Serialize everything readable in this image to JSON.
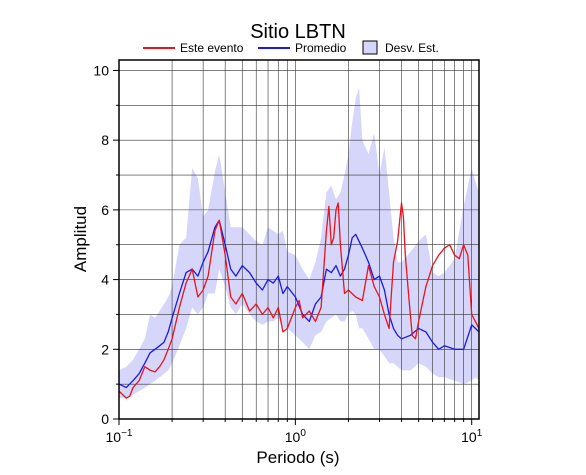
{
  "chart_data": {
    "type": "line",
    "title": "Sitio LBTN",
    "xlabel": "Periodo (s)",
    "ylabel": "Amplitud",
    "xscale": "log",
    "xlim": [
      0.1,
      11
    ],
    "ylim": [
      0,
      10.3
    ],
    "grid": true,
    "legend_position": "top",
    "x_tick_labels": [
      {
        "value": 0.1,
        "base": "10",
        "exp": "−1"
      },
      {
        "value": 1,
        "base": "10",
        "exp": "0"
      },
      {
        "value": 10,
        "base": "10",
        "exp": "1"
      }
    ],
    "y_ticks": [
      0,
      2,
      4,
      6,
      8,
      10
    ],
    "series": [
      {
        "name": "Este evento",
        "color": "#e8141e",
        "x": [
          0.1,
          0.11,
          0.115,
          0.12,
          0.13,
          0.14,
          0.15,
          0.16,
          0.17,
          0.18,
          0.19,
          0.2,
          0.22,
          0.24,
          0.26,
          0.28,
          0.3,
          0.32,
          0.35,
          0.37,
          0.4,
          0.43,
          0.46,
          0.5,
          0.55,
          0.6,
          0.65,
          0.7,
          0.75,
          0.8,
          0.85,
          0.9,
          1.0,
          1.05,
          1.1,
          1.2,
          1.3,
          1.4,
          1.5,
          1.55,
          1.6,
          1.65,
          1.7,
          1.75,
          1.8,
          1.9,
          2.0,
          2.2,
          2.4,
          2.6,
          2.8,
          3.0,
          3.2,
          3.4,
          3.6,
          3.8,
          4.0,
          4.1,
          4.2,
          4.4,
          4.6,
          4.8,
          5.0,
          5.5,
          6.0,
          6.5,
          7.0,
          7.5,
          8.0,
          8.5,
          9.0,
          9.5,
          10.0,
          11.0
        ],
        "values": [
          0.8,
          0.6,
          0.65,
          0.9,
          1.1,
          1.5,
          1.4,
          1.35,
          1.5,
          1.7,
          2.0,
          2.3,
          3.2,
          3.9,
          4.3,
          3.5,
          3.7,
          4.1,
          5.4,
          5.7,
          4.7,
          3.5,
          3.3,
          3.6,
          3.1,
          3.3,
          3.0,
          3.2,
          2.9,
          3.2,
          2.5,
          2.6,
          3.2,
          3.4,
          2.9,
          3.1,
          2.8,
          3.2,
          5.4,
          6.1,
          5.0,
          5.2,
          6.0,
          6.2,
          5.0,
          3.6,
          3.7,
          3.5,
          3.4,
          4.4,
          3.8,
          3.5,
          3.0,
          2.6,
          4.5,
          5.1,
          6.2,
          5.8,
          4.7,
          3.5,
          2.4,
          2.3,
          2.8,
          3.8,
          4.4,
          4.7,
          4.9,
          5.0,
          4.7,
          4.6,
          5.0,
          4.7,
          3.0,
          2.6
        ]
      },
      {
        "name": "Promedio",
        "color": "#1a1ae6",
        "x": [
          0.1,
          0.11,
          0.12,
          0.13,
          0.14,
          0.15,
          0.16,
          0.17,
          0.18,
          0.19,
          0.2,
          0.22,
          0.24,
          0.26,
          0.28,
          0.3,
          0.32,
          0.35,
          0.37,
          0.4,
          0.43,
          0.46,
          0.5,
          0.55,
          0.6,
          0.65,
          0.7,
          0.75,
          0.8,
          0.85,
          0.9,
          1.0,
          1.1,
          1.2,
          1.3,
          1.4,
          1.5,
          1.6,
          1.7,
          1.8,
          1.9,
          2.0,
          2.1,
          2.2,
          2.4,
          2.6,
          2.8,
          3.0,
          3.2,
          3.4,
          3.6,
          3.8,
          4.0,
          4.5,
          5.0,
          5.5,
          6.0,
          6.5,
          7.0,
          8.0,
          9.0,
          10.0,
          10.5,
          11.0
        ],
        "values": [
          1.0,
          0.9,
          1.1,
          1.3,
          1.6,
          1.9,
          2.0,
          2.1,
          2.2,
          2.5,
          2.9,
          3.6,
          4.2,
          4.3,
          4.1,
          4.5,
          4.8,
          5.5,
          5.7,
          5.0,
          4.3,
          4.1,
          4.4,
          4.2,
          3.9,
          3.7,
          4.0,
          3.9,
          4.1,
          3.6,
          3.8,
          3.5,
          3.0,
          2.8,
          3.3,
          3.5,
          4.3,
          4.2,
          4.4,
          4.1,
          4.3,
          4.7,
          5.2,
          5.3,
          4.9,
          4.5,
          4.0,
          4.1,
          3.7,
          3.0,
          2.6,
          2.4,
          2.3,
          2.4,
          2.6,
          2.5,
          2.2,
          2.0,
          2.1,
          2.0,
          2.0,
          2.7,
          2.6,
          2.5
        ]
      }
    ],
    "band": {
      "name": "Desv. Est.",
      "color": "#d6d6fb",
      "edge_color": "#000000",
      "x": [
        0.1,
        0.11,
        0.12,
        0.13,
        0.14,
        0.15,
        0.16,
        0.17,
        0.18,
        0.19,
        0.2,
        0.22,
        0.24,
        0.26,
        0.28,
        0.3,
        0.32,
        0.35,
        0.37,
        0.4,
        0.43,
        0.46,
        0.5,
        0.55,
        0.6,
        0.65,
        0.7,
        0.75,
        0.8,
        0.85,
        0.9,
        1.0,
        1.1,
        1.2,
        1.3,
        1.4,
        1.5,
        1.6,
        1.7,
        1.8,
        1.9,
        2.0,
        2.1,
        2.2,
        2.3,
        2.4,
        2.6,
        2.8,
        3.0,
        3.2,
        3.4,
        3.6,
        3.8,
        4.0,
        4.5,
        5.0,
        5.5,
        6.0,
        6.5,
        7.0,
        8.0,
        9.0,
        10.0,
        10.5,
        11.0
      ],
      "upper": [
        1.4,
        1.5,
        1.7,
        2.0,
        2.3,
        3.0,
        2.9,
        3.1,
        3.3,
        3.5,
        3.8,
        5.0,
        5.2,
        7.2,
        6.9,
        5.8,
        6.0,
        7.1,
        7.6,
        6.5,
        5.5,
        5.5,
        5.5,
        5.3,
        5.1,
        5.0,
        5.5,
        5.4,
        5.3,
        5.4,
        4.8,
        4.7,
        4.3,
        4.0,
        4.5,
        5.2,
        6.5,
        6.7,
        6.3,
        6.5,
        7.0,
        7.6,
        8.5,
        9.2,
        9.5,
        8.0,
        7.6,
        8.2,
        7.0,
        7.8,
        6.5,
        5.2,
        4.5,
        4.5,
        4.8,
        5.1,
        5.3,
        4.2,
        4.1,
        4.2,
        4.6,
        6.1,
        7.2,
        6.8,
        6.5
      ],
      "lower": [
        0.6,
        0.6,
        0.7,
        0.8,
        0.9,
        1.0,
        1.1,
        1.2,
        1.3,
        1.4,
        1.6,
        2.1,
        2.6,
        3.2,
        3.0,
        3.2,
        3.6,
        3.6,
        4.3,
        3.8,
        3.2,
        3.0,
        3.3,
        3.0,
        2.8,
        2.7,
        2.8,
        2.8,
        2.9,
        2.6,
        2.6,
        2.4,
        2.2,
        2.0,
        2.4,
        2.5,
        2.8,
        2.9,
        3.0,
        2.8,
        2.8,
        3.0,
        3.1,
        3.0,
        2.6,
        2.6,
        2.3,
        2.0,
        2.0,
        1.8,
        1.6,
        1.6,
        1.5,
        1.4,
        1.4,
        1.6,
        1.5,
        1.3,
        1.2,
        1.2,
        1.1,
        1.0,
        1.1,
        1.2,
        1.1
      ]
    }
  }
}
